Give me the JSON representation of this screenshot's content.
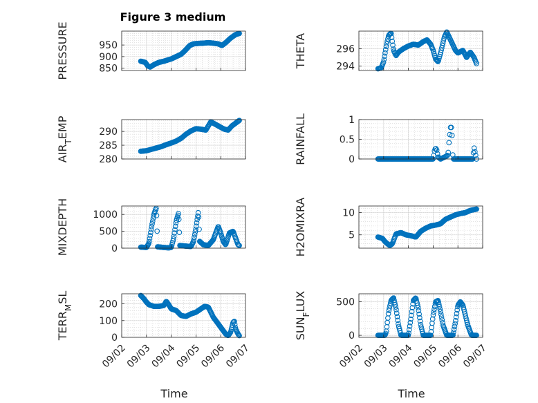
{
  "figure": {
    "title": "Figure 3 medium",
    "xlabel": "Time",
    "marker_color": "#0072BD"
  },
  "chart_data": [
    {
      "type": "scatter",
      "id": "pressure",
      "ylabel": "PRESSURE",
      "ylabel_sub": "",
      "xlim": [
        0,
        5
      ],
      "ylim": [
        840,
        1010
      ],
      "yticks": [
        850,
        900,
        950
      ],
      "xticks": [
        0,
        1,
        2,
        3,
        4,
        5
      ],
      "xticklabels": [
        "",
        "",
        "",
        "",
        "",
        ""
      ],
      "grid": true,
      "anchors": [
        [
          0.77,
          880
        ],
        [
          0.95,
          875
        ],
        [
          1.05,
          860
        ],
        [
          1.15,
          855
        ],
        [
          1.3,
          865
        ],
        [
          1.5,
          875
        ],
        [
          1.7,
          880
        ],
        [
          2.0,
          890
        ],
        [
          2.2,
          900
        ],
        [
          2.4,
          910
        ],
        [
          2.55,
          925
        ],
        [
          2.75,
          948
        ],
        [
          2.9,
          955
        ],
        [
          3.1,
          957
        ],
        [
          3.3,
          958
        ],
        [
          3.5,
          960
        ],
        [
          3.7,
          958
        ],
        [
          3.9,
          955
        ],
        [
          4.05,
          948
        ],
        [
          4.2,
          960
        ],
        [
          4.4,
          980
        ],
        [
          4.6,
          995
        ],
        [
          4.75,
          1000
        ]
      ],
      "series": [
        {
          "points": 200
        }
      ]
    },
    {
      "type": "scatter",
      "id": "theta",
      "ylabel": "THETA",
      "ylabel_sub": "",
      "xlim": [
        0,
        5
      ],
      "ylim": [
        293.5,
        298
      ],
      "yticks": [
        294,
        296
      ],
      "xticks": [
        0,
        1,
        2,
        3,
        4,
        5
      ],
      "xticklabels": [
        "",
        "",
        "",
        "",
        "",
        ""
      ],
      "grid": true,
      "anchors": [
        [
          0.77,
          293.7
        ],
        [
          0.9,
          293.8
        ],
        [
          1.0,
          294.5
        ],
        [
          1.1,
          296.2
        ],
        [
          1.2,
          297.5
        ],
        [
          1.3,
          297.8
        ],
        [
          1.4,
          295.8
        ],
        [
          1.5,
          295.2
        ],
        [
          1.6,
          295.6
        ],
        [
          1.8,
          296.0
        ],
        [
          2.0,
          296.3
        ],
        [
          2.2,
          296.5
        ],
        [
          2.4,
          296.4
        ],
        [
          2.6,
          296.8
        ],
        [
          2.75,
          297.0
        ],
        [
          2.9,
          296.5
        ],
        [
          3.0,
          295.8
        ],
        [
          3.1,
          294.8
        ],
        [
          3.2,
          294.5
        ],
        [
          3.3,
          295.5
        ],
        [
          3.45,
          297.3
        ],
        [
          3.55,
          297.9
        ],
        [
          3.7,
          297.0
        ],
        [
          3.9,
          295.8
        ],
        [
          4.0,
          295.5
        ],
        [
          4.2,
          295.8
        ],
        [
          4.35,
          295.0
        ],
        [
          4.5,
          295.6
        ],
        [
          4.65,
          295.0
        ],
        [
          4.75,
          294.3
        ]
      ],
      "series": [
        {
          "points": 180
        }
      ]
    },
    {
      "type": "scatter",
      "id": "airtemp",
      "ylabel": "AIR",
      "ylabel_sub": "T",
      "ylabel_after": "EMP",
      "xlim": [
        0,
        5
      ],
      "ylim": [
        280,
        294.3
      ],
      "yticks": [
        280,
        285,
        290
      ],
      "xticks": [
        0,
        1,
        2,
        3,
        4,
        5
      ],
      "xticklabels": [
        "",
        "",
        "",
        "",
        "",
        ""
      ],
      "grid": true,
      "anchors": [
        [
          0.77,
          282.8
        ],
        [
          1.0,
          283.0
        ],
        [
          1.2,
          283.5
        ],
        [
          1.4,
          284.0
        ],
        [
          1.6,
          284.5
        ],
        [
          1.8,
          285.2
        ],
        [
          2.0,
          285.8
        ],
        [
          2.2,
          286.5
        ],
        [
          2.4,
          287.5
        ],
        [
          2.6,
          289.0
        ],
        [
          2.8,
          290.2
        ],
        [
          3.0,
          291.0
        ],
        [
          3.2,
          290.8
        ],
        [
          3.4,
          290.5
        ],
        [
          3.6,
          293.5
        ],
        [
          3.8,
          292.5
        ],
        [
          4.0,
          291.5
        ],
        [
          4.15,
          290.8
        ],
        [
          4.3,
          290.5
        ],
        [
          4.45,
          292.0
        ],
        [
          4.6,
          293.0
        ],
        [
          4.75,
          294.0
        ]
      ],
      "series": [
        {
          "points": 160
        }
      ]
    },
    {
      "type": "scatter",
      "id": "rainfall",
      "ylabel": "RAINFALL",
      "ylabel_sub": "",
      "xlim": [
        0,
        5
      ],
      "ylim": [
        0,
        1
      ],
      "yticks": [
        0,
        0.5,
        1
      ],
      "xticks": [
        0,
        1,
        2,
        3,
        4,
        5
      ],
      "xticklabels": [
        "",
        "",
        "",
        "",
        "",
        ""
      ],
      "grid": true,
      "anchors": [
        [
          0.77,
          0
        ],
        [
          3.0,
          0
        ],
        [
          3.05,
          0.2
        ],
        [
          3.1,
          0.28
        ],
        [
          3.15,
          0.22
        ],
        [
          3.2,
          0.05
        ],
        [
          3.3,
          0
        ],
        [
          3.5,
          0.06
        ],
        [
          3.6,
          0.1
        ],
        [
          3.65,
          0.5
        ],
        [
          3.7,
          0.8
        ],
        [
          3.75,
          0.8
        ],
        [
          3.8,
          0
        ],
        [
          4.6,
          0
        ],
        [
          4.65,
          0.3
        ],
        [
          4.75,
          0
        ]
      ],
      "series": [
        {
          "points": 130
        }
      ]
    },
    {
      "type": "scatter",
      "id": "mixdepth",
      "ylabel": "MIXDEPTH",
      "ylabel_sub": "",
      "xlim": [
        0,
        5
      ],
      "ylim": [
        0,
        1250
      ],
      "yticks": [
        0,
        500,
        1000
      ],
      "xticks": [
        0,
        1,
        2,
        3,
        4,
        5
      ],
      "xticklabels": [
        "",
        "",
        "",
        "",
        "",
        ""
      ],
      "grid": true,
      "anchors": [
        [
          0.77,
          30
        ],
        [
          1.0,
          20
        ],
        [
          1.1,
          150
        ],
        [
          1.2,
          600
        ],
        [
          1.3,
          1000
        ],
        [
          1.4,
          1200
        ],
        [
          1.45,
          40
        ],
        [
          1.7,
          20
        ],
        [
          1.9,
          10
        ],
        [
          2.0,
          20
        ],
        [
          2.1,
          300
        ],
        [
          2.2,
          800
        ],
        [
          2.3,
          1050
        ],
        [
          2.35,
          80
        ],
        [
          2.6,
          60
        ],
        [
          2.8,
          50
        ],
        [
          2.9,
          200
        ],
        [
          3.0,
          600
        ],
        [
          3.1,
          1100
        ],
        [
          3.15,
          200
        ],
        [
          3.3,
          100
        ],
        [
          3.5,
          80
        ],
        [
          3.7,
          250
        ],
        [
          3.8,
          450
        ],
        [
          3.9,
          650
        ],
        [
          4.0,
          450
        ],
        [
          4.1,
          200
        ],
        [
          4.2,
          100
        ],
        [
          4.35,
          450
        ],
        [
          4.5,
          500
        ],
        [
          4.6,
          300
        ],
        [
          4.7,
          100
        ],
        [
          4.75,
          80
        ]
      ],
      "series": [
        {
          "points": 200
        }
      ]
    },
    {
      "type": "scatter",
      "id": "h2omixra",
      "ylabel": "H2OMIXRA",
      "ylabel_sub": "",
      "xlim": [
        0,
        5
      ],
      "ylim": [
        2,
        11.5
      ],
      "yticks": [
        5,
        10
      ],
      "xticks": [
        0,
        1,
        2,
        3,
        4,
        5
      ],
      "xticklabels": [
        "",
        "",
        "",
        "",
        "",
        ""
      ],
      "grid": true,
      "anchors": [
        [
          0.77,
          4.5
        ],
        [
          0.95,
          4.2
        ],
        [
          1.05,
          3.5
        ],
        [
          1.15,
          3.0
        ],
        [
          1.25,
          2.6
        ],
        [
          1.35,
          3.0
        ],
        [
          1.5,
          5.2
        ],
        [
          1.7,
          5.5
        ],
        [
          1.9,
          5.0
        ],
        [
          2.1,
          4.8
        ],
        [
          2.3,
          4.5
        ],
        [
          2.5,
          5.8
        ],
        [
          2.7,
          6.5
        ],
        [
          2.9,
          7.0
        ],
        [
          3.1,
          7.2
        ],
        [
          3.3,
          7.5
        ],
        [
          3.5,
          8.5
        ],
        [
          3.7,
          9.0
        ],
        [
          3.9,
          9.5
        ],
        [
          4.1,
          9.8
        ],
        [
          4.3,
          10.0
        ],
        [
          4.5,
          10.5
        ],
        [
          4.75,
          10.8
        ]
      ],
      "series": [
        {
          "points": 190
        }
      ]
    },
    {
      "type": "scatter",
      "id": "terrmsl",
      "ylabel": "TERR",
      "ylabel_sub": "M",
      "ylabel_after": "SL",
      "xlim": [
        0,
        5
      ],
      "ylim": [
        0,
        260
      ],
      "yticks": [
        0,
        100,
        200
      ],
      "xticks": [
        0,
        1,
        2,
        3,
        4,
        5
      ],
      "xticklabels": [
        "09/02",
        "09/03",
        "09/04",
        "09/05",
        "09/06",
        "09/07"
      ],
      "grid": true,
      "anchors": [
        [
          0.77,
          250
        ],
        [
          0.9,
          230
        ],
        [
          1.0,
          210
        ],
        [
          1.1,
          195
        ],
        [
          1.3,
          185
        ],
        [
          1.5,
          185
        ],
        [
          1.7,
          190
        ],
        [
          1.8,
          215
        ],
        [
          1.9,
          195
        ],
        [
          2.0,
          170
        ],
        [
          2.2,
          160
        ],
        [
          2.4,
          130
        ],
        [
          2.6,
          125
        ],
        [
          2.8,
          140
        ],
        [
          3.0,
          150
        ],
        [
          3.2,
          170
        ],
        [
          3.35,
          185
        ],
        [
          3.5,
          180
        ],
        [
          3.6,
          150
        ],
        [
          3.7,
          120
        ],
        [
          3.8,
          100
        ],
        [
          3.9,
          80
        ],
        [
          4.0,
          60
        ],
        [
          4.1,
          40
        ],
        [
          4.2,
          20
        ],
        [
          4.3,
          10
        ],
        [
          4.4,
          30
        ],
        [
          4.5,
          90
        ],
        [
          4.55,
          95
        ],
        [
          4.6,
          50
        ],
        [
          4.7,
          20
        ],
        [
          4.75,
          10
        ]
      ],
      "series": [
        {
          "points": 200
        }
      ]
    },
    {
      "type": "scatter",
      "id": "sunflux",
      "ylabel": "SUN",
      "ylabel_sub": "F",
      "ylabel_after": "LUX",
      "xlim": [
        0,
        5
      ],
      "ylim": [
        -30,
        620
      ],
      "yticks": [
        0,
        500
      ],
      "xticks": [
        0,
        1,
        2,
        3,
        4,
        5
      ],
      "xticklabels": [
        "09/02",
        "09/03",
        "09/04",
        "09/05",
        "09/06",
        "09/07"
      ],
      "grid": true,
      "anchors": [
        [
          0.77,
          0
        ],
        [
          1.05,
          0
        ],
        [
          1.1,
          40
        ],
        [
          1.2,
          350
        ],
        [
          1.3,
          520
        ],
        [
          1.4,
          560
        ],
        [
          1.5,
          400
        ],
        [
          1.6,
          150
        ],
        [
          1.7,
          0
        ],
        [
          2.0,
          0
        ],
        [
          2.1,
          250
        ],
        [
          2.2,
          520
        ],
        [
          2.3,
          560
        ],
        [
          2.4,
          400
        ],
        [
          2.5,
          150
        ],
        [
          2.6,
          0
        ],
        [
          2.9,
          0
        ],
        [
          3.0,
          300
        ],
        [
          3.1,
          500
        ],
        [
          3.2,
          520
        ],
        [
          3.3,
          350
        ],
        [
          3.4,
          150
        ],
        [
          3.55,
          0
        ],
        [
          3.8,
          0
        ],
        [
          3.9,
          200
        ],
        [
          4.0,
          450
        ],
        [
          4.1,
          500
        ],
        [
          4.2,
          450
        ],
        [
          4.3,
          300
        ],
        [
          4.4,
          150
        ],
        [
          4.55,
          0
        ],
        [
          4.75,
          0
        ]
      ],
      "series": [
        {
          "points": 190
        }
      ]
    }
  ]
}
